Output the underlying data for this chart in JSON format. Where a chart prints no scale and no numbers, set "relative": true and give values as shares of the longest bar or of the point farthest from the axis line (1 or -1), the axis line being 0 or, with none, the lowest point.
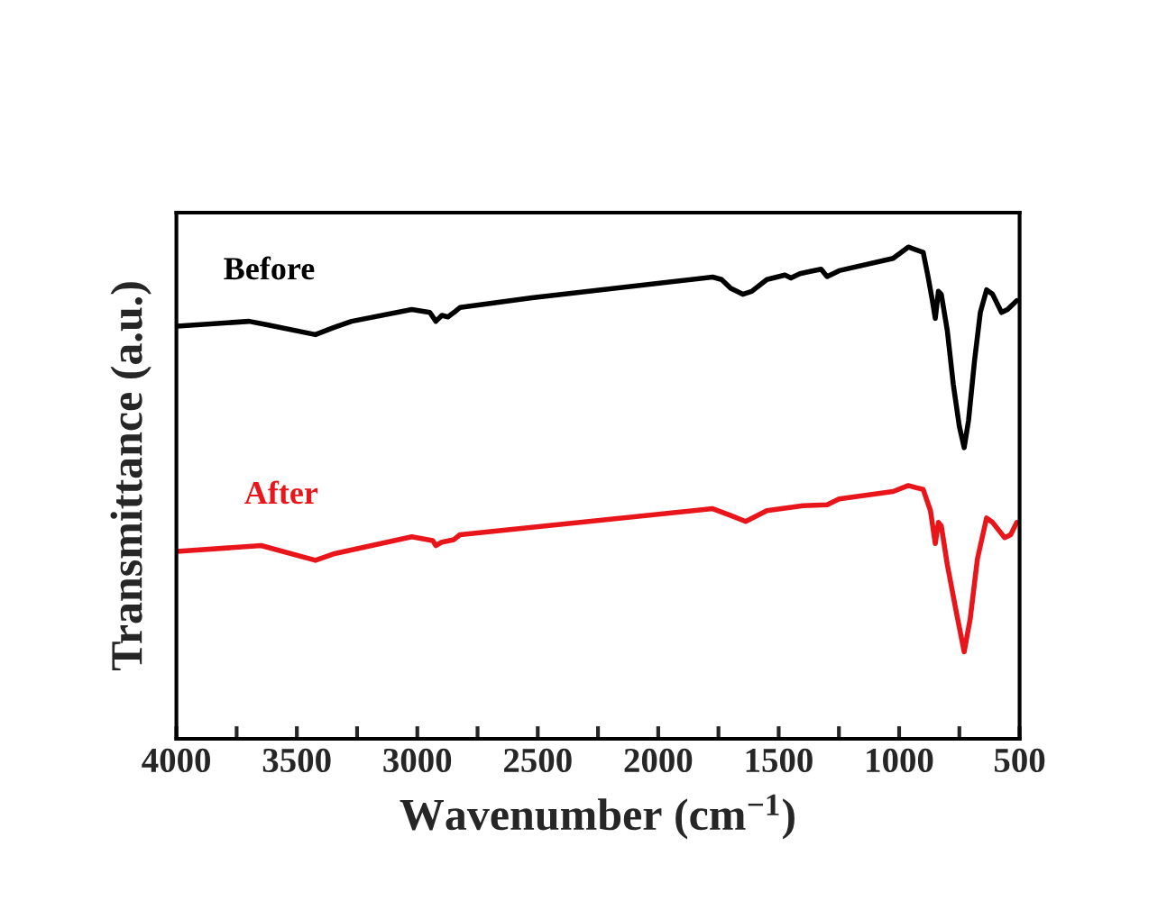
{
  "chart_data": {
    "type": "line",
    "xlabel": "Wavenumber (cm$^{−1}$)",
    "ylabel": "Transmittance (a.u.)",
    "relative": true,
    "tick_labels": "x",
    "grid": false,
    "legend": false,
    "xlim": [
      4000,
      500
    ],
    "xticks": [
      4000,
      {
        "value": 3750,
        "label": null
      },
      3500,
      {
        "value": 3250,
        "label": null
      },
      3000,
      {
        "value": 2750,
        "label": null
      },
      2500,
      {
        "value": 2250,
        "label": null
      },
      2000,
      {
        "value": 1750,
        "label": null
      },
      1500,
      {
        "value": 1250,
        "label": null
      },
      1000,
      {
        "value": 750,
        "label": null
      },
      500
    ],
    "series": [
      {
        "name": "Before",
        "color": "#000000",
        "x": [
          3998,
          3698,
          3623,
          3423,
          3348,
          3273,
          3023,
          2948,
          2923,
          2898,
          2873,
          2848,
          2823,
          2524,
          1774,
          1737,
          1699,
          1649,
          1612,
          1549,
          1474,
          1449,
          1412,
          1374,
          1324,
          1299,
          1249,
          1025,
          962,
          900,
          880,
          862,
          850,
          837,
          825,
          800,
          775,
          750,
          730,
          712,
          687,
          663,
          637,
          612,
          575,
          550,
          512
        ],
        "values": [
          0.839,
          0.849,
          0.842,
          0.822,
          0.836,
          0.849,
          0.873,
          0.867,
          0.849,
          0.861,
          0.858,
          0.867,
          0.877,
          0.897,
          0.939,
          0.934,
          0.916,
          0.904,
          0.91,
          0.934,
          0.943,
          0.937,
          0.946,
          0.95,
          0.955,
          0.94,
          0.952,
          0.977,
          1.0,
          0.989,
          0.94,
          0.891,
          0.855,
          0.91,
          0.904,
          0.83,
          0.72,
          0.635,
          0.592,
          0.647,
          0.769,
          0.867,
          0.913,
          0.904,
          0.867,
          0.873,
          0.891
        ]
      },
      {
        "name": "After",
        "color": "#e8151b",
        "x": [
          3998,
          3648,
          3423,
          3348,
          3023,
          2936,
          2923,
          2898,
          2848,
          2823,
          1774,
          1699,
          1637,
          1549,
          1399,
          1299,
          1249,
          1025,
          962,
          900,
          870,
          850,
          837,
          825,
          800,
          762,
          730,
          705,
          675,
          637,
          612,
          562,
          537,
          512
        ],
        "values": [
          0.381,
          0.393,
          0.363,
          0.376,
          0.411,
          0.403,
          0.393,
          0.4,
          0.405,
          0.415,
          0.468,
          0.454,
          0.442,
          0.464,
          0.474,
          0.476,
          0.488,
          0.503,
          0.515,
          0.507,
          0.464,
          0.397,
          0.44,
          0.433,
          0.354,
          0.256,
          0.177,
          0.244,
          0.366,
          0.449,
          0.44,
          0.409,
          0.415,
          0.44
        ]
      }
    ]
  }
}
